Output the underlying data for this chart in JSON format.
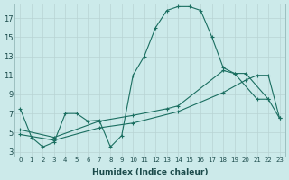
{
  "xlabel": "Humidex (Indice chaleur)",
  "background_color": "#cceaea",
  "grid_color": "#b8d4d4",
  "line_color": "#1a6e60",
  "xlim": [
    -0.5,
    23.5
  ],
  "ylim": [
    2.5,
    18.5
  ],
  "xticks": [
    0,
    1,
    2,
    3,
    4,
    5,
    6,
    7,
    8,
    9,
    10,
    11,
    12,
    13,
    14,
    15,
    16,
    17,
    18,
    19,
    20,
    21,
    22,
    23
  ],
  "yticks": [
    3,
    5,
    7,
    9,
    11,
    13,
    15,
    17
  ],
  "line1_x": [
    0,
    1,
    2,
    3,
    4,
    5,
    6,
    7,
    8,
    9,
    10,
    11,
    12,
    13,
    14,
    15,
    16,
    17,
    18,
    19,
    21,
    22
  ],
  "line1_y": [
    7.5,
    4.5,
    3.5,
    4.0,
    7.0,
    7.0,
    6.2,
    6.3,
    3.5,
    4.7,
    11.0,
    13.0,
    16.0,
    17.8,
    18.2,
    18.2,
    17.8,
    15.0,
    11.8,
    11.2,
    8.5,
    8.5
  ],
  "line2_x": [
    0,
    3,
    7,
    10,
    13,
    14,
    18,
    19,
    20,
    22,
    23
  ],
  "line2_y": [
    5.3,
    4.5,
    6.2,
    6.8,
    7.5,
    7.8,
    11.5,
    11.2,
    11.2,
    8.5,
    6.5
  ],
  "line3_x": [
    0,
    3,
    7,
    10,
    14,
    18,
    20,
    21,
    22,
    23
  ],
  "line3_y": [
    4.8,
    4.2,
    5.5,
    6.0,
    7.2,
    9.2,
    10.5,
    11.0,
    11.0,
    6.5
  ],
  "figsize": [
    3.2,
    2.0
  ],
  "dpi": 100
}
